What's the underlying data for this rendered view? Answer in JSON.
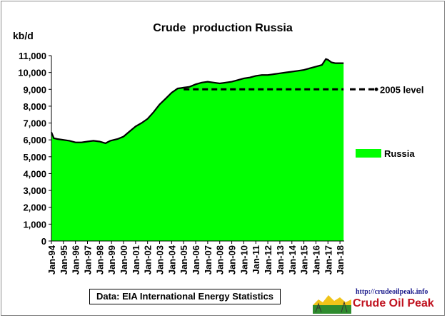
{
  "chart_data": {
    "type": "area",
    "title": "Crude  production Russia",
    "ylabel": "kb/d",
    "xlabel": "",
    "ylim": [
      0,
      11000
    ],
    "ytick_step": 1000,
    "y_ticks": [
      "0",
      "1,000",
      "2,000",
      "3,000",
      "4,000",
      "5,000",
      "6,000",
      "7,000",
      "8,000",
      "9,000",
      "10,000",
      "11,000"
    ],
    "x_ticks": [
      "Jan-94",
      "Jan-95",
      "Jan-96",
      "Jan-97",
      "Jan-98",
      "Jan-99",
      "Jan-00",
      "Jan-01",
      "Jan-02",
      "Jan-03",
      "Jan-04",
      "Jan-05",
      "Jan-06",
      "Jan-07",
      "Jan-08",
      "Jan-09",
      "Jan-10",
      "Jan-11",
      "Jan-12",
      "Jan-13",
      "Jan-14",
      "Jan-15",
      "Jan-16",
      "Jan-17",
      "Jan-18"
    ],
    "series": [
      {
        "name": "Russia",
        "color": "#00ff00",
        "x": [
          1994.0,
          1994.2,
          1994.5,
          1995.0,
          1995.5,
          1996.0,
          1996.5,
          1997.0,
          1997.5,
          1998.0,
          1998.5,
          1998.9,
          1999.5,
          2000.0,
          2000.5,
          2001.0,
          2001.5,
          2002.0,
          2002.5,
          2003.0,
          2003.5,
          2004.0,
          2004.5,
          2005.0,
          2005.5,
          2006.0,
          2006.5,
          2007.0,
          2007.5,
          2008.0,
          2008.5,
          2009.0,
          2009.5,
          2010.0,
          2010.5,
          2011.0,
          2011.5,
          2012.0,
          2012.5,
          2013.0,
          2013.5,
          2014.0,
          2014.5,
          2015.0,
          2015.5,
          2016.0,
          2016.5,
          2016.83,
          2017.0,
          2017.3,
          2017.6,
          2018.0,
          2018.3
        ],
        "values": [
          6450,
          6100,
          6050,
          6000,
          5950,
          5850,
          5850,
          5900,
          5950,
          5900,
          5800,
          5950,
          6050,
          6200,
          6500,
          6800,
          7000,
          7250,
          7650,
          8100,
          8450,
          8800,
          9050,
          9100,
          9150,
          9300,
          9400,
          9450,
          9400,
          9350,
          9400,
          9450,
          9550,
          9650,
          9700,
          9800,
          9850,
          9850,
          9900,
          9950,
          10000,
          10050,
          10100,
          10150,
          10250,
          10350,
          10450,
          10800,
          10750,
          10600,
          10550,
          10550,
          10550
        ]
      },
      {
        "name": "2005 level",
        "color": "#000000",
        "dashed": true,
        "x": [
          2005.0,
          2018.3
        ],
        "values": [
          9000,
          9000
        ]
      }
    ],
    "legend_position": "right",
    "source_note": "Data: EIA International Energy Statistics"
  },
  "logo": {
    "url": "http://crudeoilpeak.info",
    "name": "Crude Oil Peak"
  }
}
